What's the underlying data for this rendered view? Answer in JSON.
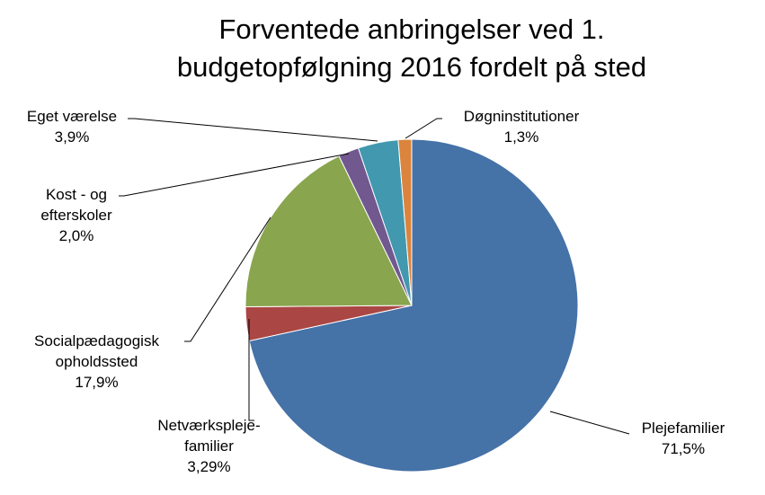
{
  "chart_data": {
    "type": "pie",
    "title": "Forventede anbringelser ved 1. budgetopfølgning  2016 fordelt på sted",
    "categories": [
      "Plejefamilier",
      "Netværkspleje-familier",
      "Socialpædagogisk opholdssted",
      "Kost - og efterskoler",
      "Eget værelse",
      "Døgninstitutioner"
    ],
    "values": [
      71.5,
      3.29,
      17.9,
      2.0,
      3.9,
      1.3
    ],
    "value_labels": [
      "71,5%",
      "3,29%",
      "17,9%",
      "2,0%",
      "3,9%",
      "1,3%"
    ],
    "colors": [
      "#4572a7",
      "#aa4643",
      "#89a54e",
      "#71588f",
      "#4198af",
      "#db843d"
    ]
  }
}
